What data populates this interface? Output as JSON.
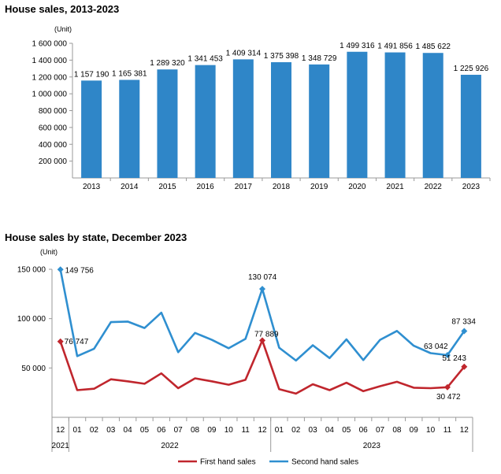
{
  "chart_data": [
    {
      "type": "bar",
      "title": "House sales, 2013-2023",
      "unit_label": "(Unit)",
      "categories": [
        "2013",
        "2014",
        "2015",
        "2016",
        "2017",
        "2018",
        "2019",
        "2020",
        "2021",
        "2022",
        "2023"
      ],
      "values": [
        1157190,
        1165381,
        1289320,
        1341453,
        1409314,
        1375398,
        1348729,
        1499316,
        1491856,
        1485622,
        1225926
      ],
      "value_labels": [
        "1 157 190",
        "1 165 381",
        "1 289 320",
        "1 341 453",
        "1 409 314",
        "1 375 398",
        "1 348 729",
        "1 499 316",
        "1 491 856",
        "1 485 622",
        "1 225 926"
      ],
      "yticks": [
        200000,
        400000,
        600000,
        800000,
        1000000,
        1200000,
        1400000,
        1600000
      ],
      "ytick_labels": [
        "200 000",
        "400 000",
        "600 000",
        "800 000",
        "1 000 000",
        "1 200 000",
        "1 400 000",
        "1 600 000"
      ],
      "ylim": [
        0,
        1600000
      ],
      "color": "#2f86c8"
    },
    {
      "type": "line",
      "title": "House sales by state, December 2023",
      "unit_label": "(Unit)",
      "x": [
        "12",
        "01",
        "02",
        "03",
        "04",
        "05",
        "06",
        "07",
        "08",
        "09",
        "10",
        "11",
        "12",
        "01",
        "02",
        "03",
        "04",
        "05",
        "06",
        "07",
        "08",
        "09",
        "10",
        "11",
        "12"
      ],
      "year_labels": [
        "2021",
        "2022",
        "2023"
      ],
      "ylim": [
        0,
        150000
      ],
      "yticks": [
        50000,
        100000,
        150000
      ],
      "ytick_labels": [
        "50 000",
        "100 000",
        "150 000"
      ],
      "series": [
        {
          "name": "First hand sales",
          "color": "#c0262d",
          "values": [
            76747,
            27500,
            29000,
            38500,
            36500,
            34000,
            44500,
            29500,
            39500,
            36500,
            33000,
            38000,
            77889,
            28500,
            24000,
            33500,
            27500,
            35000,
            26500,
            31500,
            36000,
            30000,
            29500,
            30472,
            51243
          ],
          "labels": [
            {
              "index": 0,
              "text": "76 747"
            },
            {
              "index": 12,
              "text": "77 889"
            },
            {
              "index": 23,
              "text": "30 472"
            },
            {
              "index": 24,
              "text": "51 243"
            }
          ]
        },
        {
          "name": "Second hand sales",
          "color": "#2f8fd0",
          "values": [
            149756,
            62000,
            69500,
            96500,
            97000,
            90500,
            106000,
            66000,
            85500,
            78500,
            70000,
            79500,
            130074,
            70500,
            57500,
            73000,
            60000,
            79000,
            58000,
            78500,
            87500,
            72500,
            65000,
            63042,
            87334
          ],
          "labels": [
            {
              "index": 0,
              "text": "149 756"
            },
            {
              "index": 12,
              "text": "130 074"
            },
            {
              "index": 23,
              "text": "63 042"
            },
            {
              "index": 24,
              "text": "87 334"
            }
          ]
        }
      ]
    }
  ]
}
